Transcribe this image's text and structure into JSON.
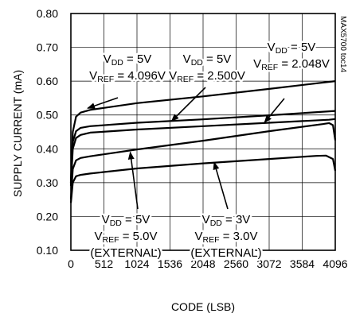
{
  "chart_data": {
    "type": "line",
    "title": "",
    "xlabel": "CODE (LSB)",
    "ylabel": "SUPPLY CURRENT (mA)",
    "xlim": [
      0,
      4096
    ],
    "ylim": [
      0.1,
      0.8
    ],
    "x_ticks": [
      "0",
      "512",
      "1024",
      "1536",
      "2048",
      "2560",
      "3072",
      "3584",
      "4096"
    ],
    "y_ticks": [
      "0.80",
      "0.70",
      "0.60",
      "0.50",
      "0.40",
      "0.30",
      "0.20",
      "0.10"
    ],
    "grid": true,
    "side_label": "MAX5700 toc14",
    "series": [
      {
        "color": "#000000",
        "x": [
          0,
          30,
          80,
          150,
          300,
          1024,
          2048,
          3072,
          4096
        ],
        "y": [
          0.3,
          0.45,
          0.495,
          0.507,
          0.515,
          0.535,
          0.555,
          0.577,
          0.6
        ]
      },
      {
        "color": "#000000",
        "x": [
          0,
          30,
          80,
          150,
          300,
          1024,
          2048,
          3072,
          4096
        ],
        "y": [
          0.3,
          0.42,
          0.452,
          0.462,
          0.467,
          0.477,
          0.487,
          0.499,
          0.512
        ]
      },
      {
        "color": "#000000",
        "x": [
          0,
          30,
          80,
          150,
          300,
          1024,
          2048,
          3072,
          4000,
          4096
        ],
        "y": [
          0.29,
          0.4,
          0.432,
          0.441,
          0.448,
          0.457,
          0.467,
          0.477,
          0.486,
          0.488
        ]
      },
      {
        "color": "#000000",
        "x": [
          0,
          30,
          80,
          150,
          300,
          1024,
          2048,
          3072,
          3900,
          4000,
          4060,
          4096
        ],
        "y": [
          0.25,
          0.34,
          0.366,
          0.373,
          0.378,
          0.398,
          0.424,
          0.452,
          0.473,
          0.476,
          0.47,
          0.425
        ]
      },
      {
        "color": "#000000",
        "x": [
          0,
          30,
          80,
          150,
          300,
          1024,
          2048,
          3072,
          3800,
          3950,
          4060,
          4096
        ],
        "y": [
          0.24,
          0.3,
          0.319,
          0.323,
          0.327,
          0.342,
          0.357,
          0.37,
          0.379,
          0.38,
          0.37,
          0.335
        ]
      }
    ],
    "annotations": [
      {
        "lines": [
          {
            "parts": [
              {
                "t": "V",
                "s": false
              },
              {
                "t": "DD",
                "s": true
              },
              {
                "t": " = 5V",
                "s": false
              }
            ]
          },
          {
            "parts": [
              {
                "t": "V",
                "s": false
              },
              {
                "t": "REF",
                "s": true
              },
              {
                "t": " = 4.096V",
                "s": false
              }
            ]
          }
        ],
        "arrow_to": {
          "x": 260,
          "y": 0.52
        }
      },
      {
        "lines": [
          {
            "parts": [
              {
                "t": "V",
                "s": false
              },
              {
                "t": "DD",
                "s": true
              },
              {
                "t": " = 5V",
                "s": false
              }
            ]
          },
          {
            "parts": [
              {
                "t": "V",
                "s": false
              },
              {
                "t": "REF",
                "s": true
              },
              {
                "t": " = 2.500V",
                "s": false
              }
            ]
          }
        ],
        "arrow_to": {
          "x": 1560,
          "y": 0.482
        }
      },
      {
        "lines": [
          {
            "parts": [
              {
                "t": "V",
                "s": false
              },
              {
                "t": "DD",
                "s": true
              },
              {
                "t": " = 5V",
                "s": false
              }
            ]
          },
          {
            "parts": [
              {
                "t": "V",
                "s": false
              },
              {
                "t": "REF",
                "s": true
              },
              {
                "t": " = 2.048V",
                "s": false
              }
            ]
          }
        ],
        "arrow_to": {
          "x": 3000,
          "y": 0.478
        }
      },
      {
        "lines": [
          {
            "parts": [
              {
                "t": "V",
                "s": false
              },
              {
                "t": "DD",
                "s": true
              },
              {
                "t": " = 5V",
                "s": false
              }
            ]
          },
          {
            "parts": [
              {
                "t": "V",
                "s": false
              },
              {
                "t": "REF",
                "s": true
              },
              {
                "t": " = 5.0V",
                "s": false
              }
            ]
          },
          {
            "parts": [
              {
                "t": "(EXTERNAL)",
                "s": false
              }
            ]
          }
        ],
        "arrow_to": {
          "x": 920,
          "y": 0.39
        }
      },
      {
        "lines": [
          {
            "parts": [
              {
                "t": "V",
                "s": false
              },
              {
                "t": "DD",
                "s": true
              },
              {
                "t": " = 3V",
                "s": false
              }
            ]
          },
          {
            "parts": [
              {
                "t": "V",
                "s": false
              },
              {
                "t": "REF",
                "s": true
              },
              {
                "t": " = 3.0V",
                "s": false
              }
            ]
          },
          {
            "parts": [
              {
                "t": "(EXTERNAL)",
                "s": false
              }
            ]
          }
        ],
        "arrow_to": {
          "x": 2220,
          "y": 0.36
        }
      }
    ]
  }
}
